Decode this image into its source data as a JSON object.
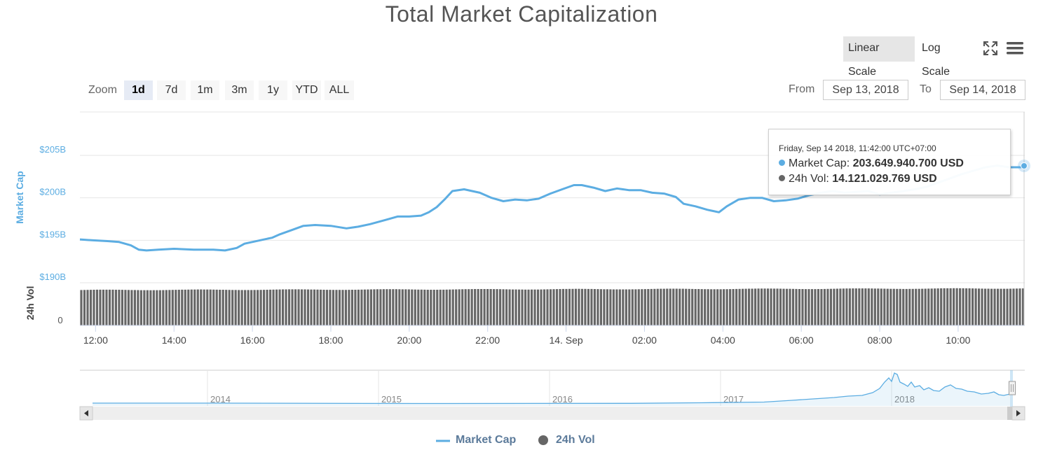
{
  "title": "Total Market Capitalization",
  "scale": {
    "linear_label": "Linear Scale",
    "log_label": "Log Scale",
    "active": "linear"
  },
  "zoom": {
    "label": "Zoom",
    "buttons": [
      "1d",
      "7d",
      "1m",
      "3m",
      "1y",
      "YTD",
      "ALL"
    ],
    "active": "1d"
  },
  "range": {
    "from_label": "From",
    "from_value": "Sep 13, 2018",
    "to_label": "To",
    "to_value": "Sep 14, 2018"
  },
  "tooltip": {
    "date": "Friday, Sep 14 2018, 11:42:00 UTC+07:00",
    "market_cap_label": "Market Cap:",
    "market_cap_value": "203.649.940.700 USD",
    "vol_label": "24h Vol:",
    "vol_value": "14.121.029.769 USD"
  },
  "legend": {
    "market_cap": "Market Cap",
    "vol": "24h Vol"
  },
  "colors": {
    "market_cap": "#5cade2",
    "vol": "#666666",
    "nav": "#5cade2"
  },
  "chart_data": {
    "type": "line",
    "title": "Total Market Capitalization",
    "y_axis": {
      "label": "Market Cap",
      "ticks": [
        "$205B",
        "$200B",
        "$195B",
        "$190B"
      ],
      "tick_values": [
        205,
        200,
        195,
        190
      ],
      "unit": "billion USD"
    },
    "vol_axis": {
      "label": "24h Vol",
      "ticks": [
        "0"
      ]
    },
    "x_axis": {
      "ticks": [
        "12:00",
        "14:00",
        "16:00",
        "18:00",
        "20:00",
        "22:00",
        "14. Sep",
        "02:00",
        "04:00",
        "06:00",
        "08:00",
        "10:00"
      ]
    },
    "x_range_hours": [
      11.6,
      35.7
    ],
    "series": [
      {
        "name": "Market Cap",
        "points": [
          [
            11.6,
            195.1
          ],
          [
            11.9,
            195.0
          ],
          [
            12.3,
            194.9
          ],
          [
            12.6,
            194.8
          ],
          [
            12.9,
            194.4
          ],
          [
            13.1,
            193.9
          ],
          [
            13.3,
            193.8
          ],
          [
            13.6,
            193.9
          ],
          [
            14.0,
            194.0
          ],
          [
            14.5,
            193.9
          ],
          [
            15.0,
            193.9
          ],
          [
            15.3,
            193.8
          ],
          [
            15.6,
            194.1
          ],
          [
            15.8,
            194.6
          ],
          [
            16.2,
            195.0
          ],
          [
            16.5,
            195.3
          ],
          [
            16.7,
            195.7
          ],
          [
            17.0,
            196.2
          ],
          [
            17.3,
            196.7
          ],
          [
            17.6,
            196.8
          ],
          [
            18.0,
            196.7
          ],
          [
            18.4,
            196.4
          ],
          [
            18.7,
            196.6
          ],
          [
            19.0,
            196.9
          ],
          [
            19.4,
            197.4
          ],
          [
            19.7,
            197.8
          ],
          [
            20.0,
            197.8
          ],
          [
            20.3,
            197.9
          ],
          [
            20.5,
            198.3
          ],
          [
            20.7,
            198.9
          ],
          [
            20.9,
            199.8
          ],
          [
            21.1,
            200.8
          ],
          [
            21.4,
            201.0
          ],
          [
            21.8,
            200.6
          ],
          [
            22.1,
            200.0
          ],
          [
            22.4,
            199.6
          ],
          [
            22.7,
            199.8
          ],
          [
            23.0,
            199.7
          ],
          [
            23.3,
            199.9
          ],
          [
            23.6,
            200.5
          ],
          [
            23.9,
            201.0
          ],
          [
            24.2,
            201.5
          ],
          [
            24.4,
            201.5
          ],
          [
            24.7,
            201.2
          ],
          [
            25.0,
            200.8
          ],
          [
            25.3,
            201.1
          ],
          [
            25.6,
            200.9
          ],
          [
            25.9,
            200.9
          ],
          [
            26.2,
            200.6
          ],
          [
            26.5,
            200.5
          ],
          [
            26.8,
            200.1
          ],
          [
            27.0,
            199.3
          ],
          [
            27.3,
            199.0
          ],
          [
            27.6,
            198.6
          ],
          [
            27.9,
            198.3
          ],
          [
            28.1,
            199.0
          ],
          [
            28.4,
            199.8
          ],
          [
            28.7,
            200.0
          ],
          [
            29.0,
            200.0
          ],
          [
            29.3,
            199.6
          ],
          [
            29.6,
            199.7
          ],
          [
            29.9,
            199.9
          ],
          [
            30.2,
            200.3
          ],
          [
            30.5,
            200.6
          ],
          [
            30.8,
            200.8
          ],
          [
            31.1,
            200.6
          ],
          [
            31.4,
            200.7
          ],
          [
            31.7,
            200.8
          ],
          [
            32.0,
            200.4
          ],
          [
            32.3,
            200.6
          ],
          [
            32.6,
            200.8
          ],
          [
            32.9,
            201.0
          ],
          [
            33.2,
            201.3
          ],
          [
            33.5,
            201.8
          ],
          [
            33.8,
            202.3
          ],
          [
            34.1,
            202.8
          ],
          [
            34.4,
            203.2
          ],
          [
            34.7,
            203.6
          ],
          [
            35.0,
            203.8
          ],
          [
            35.3,
            203.6
          ],
          [
            35.6,
            203.6
          ],
          [
            35.7,
            203.6
          ]
        ]
      },
      {
        "name": "24h Vol",
        "type": "column",
        "y_range_billion": [
          0,
          16
        ],
        "note": "≈13.5B rising to ≈14.1B over the day"
      }
    ],
    "navigator": {
      "type": "area",
      "year_labels": [
        "2014",
        "2015",
        "2016",
        "2017",
        "2018"
      ]
    }
  }
}
